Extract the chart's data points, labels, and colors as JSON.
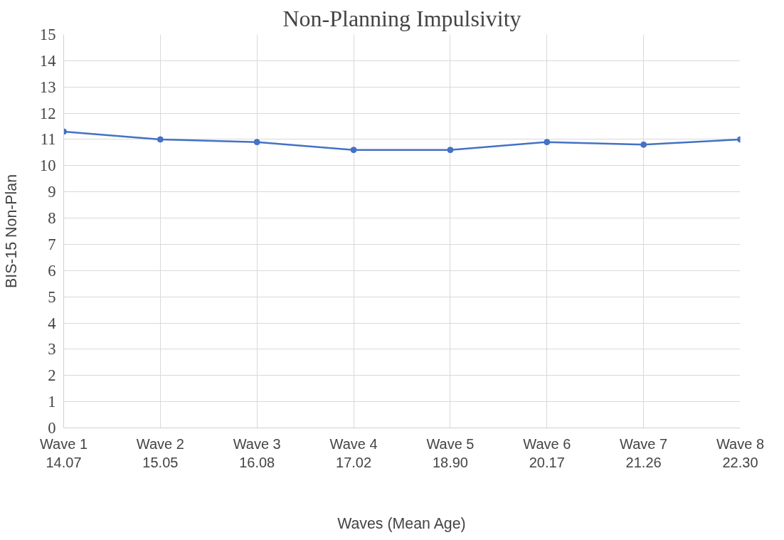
{
  "chart_data": {
    "type": "line",
    "title": "Non-Planning Impulsivity",
    "xlabel": "Waves (Mean Age)",
    "ylabel": "BIS-15 Non-Plan",
    "categories": [
      "Wave 1\n14.07",
      "Wave 2\n15.05",
      "Wave 3\n16.08",
      "Wave 4\n17.02",
      "Wave 5\n18.90",
      "Wave 6\n20.17",
      "Wave 7\n21.26",
      "Wave 8\n22.30"
    ],
    "series": [
      {
        "color": "#4472c4",
        "values": [
          11.3,
          11.0,
          10.9,
          10.6,
          10.6,
          10.9,
          10.8,
          11.0
        ]
      }
    ],
    "ylim": [
      0,
      15
    ],
    "yticks": [
      0,
      1,
      2,
      3,
      4,
      5,
      6,
      7,
      8,
      9,
      10,
      11,
      12,
      13,
      14,
      15
    ],
    "grid": true,
    "marker": "circle",
    "line_style": "solid"
  }
}
